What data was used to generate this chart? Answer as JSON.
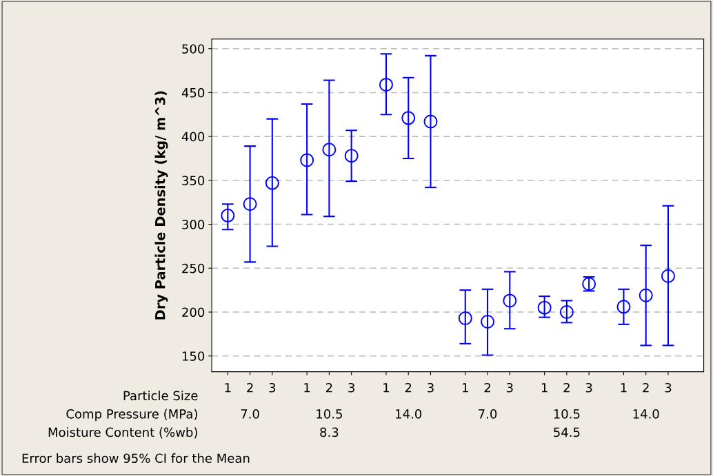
{
  "chart_data": {
    "type": "scatter",
    "ylabel": "Dry Particle Density (kg/ m^3)",
    "categories": [
      "1",
      "2",
      "3",
      "1",
      "2",
      "3",
      "1",
      "2",
      "3",
      "1",
      "2",
      "3",
      "1",
      "2",
      "3",
      "1",
      "2",
      "3"
    ],
    "series": [
      {
        "color": "#0000ff",
        "values": [
          310,
          323,
          347,
          373,
          385,
          378,
          459,
          421,
          417,
          193,
          189,
          213,
          205,
          200,
          232,
          206,
          219,
          241
        ],
        "errors": [
          [
            294,
            323
          ],
          [
            257,
            389
          ],
          [
            275,
            420
          ],
          [
            311,
            437
          ],
          [
            309,
            464
          ],
          [
            349,
            407
          ],
          [
            425,
            494
          ],
          [
            375,
            467
          ],
          [
            342,
            492
          ],
          [
            164,
            225
          ],
          [
            151,
            226
          ],
          [
            181,
            246
          ],
          [
            194,
            218
          ],
          [
            188,
            213
          ],
          [
            224,
            240
          ],
          [
            186,
            226
          ],
          [
            162,
            276
          ],
          [
            162,
            321
          ]
        ]
      }
    ],
    "ylim": [
      132,
      511
    ],
    "yticks": [
      150,
      200,
      250,
      300,
      350,
      400,
      450,
      500
    ],
    "grid": "y",
    "marker": "circle",
    "annotations": [
      "Particle Size",
      "Comp Pressure (MPa)",
      "Moisture Content (%wb)",
      "7.0",
      "10.5",
      "14.0",
      "7.0",
      "10.5",
      "14.0",
      "8.3",
      "54.5",
      "Error bars show 95% CI for the Mean"
    ]
  }
}
